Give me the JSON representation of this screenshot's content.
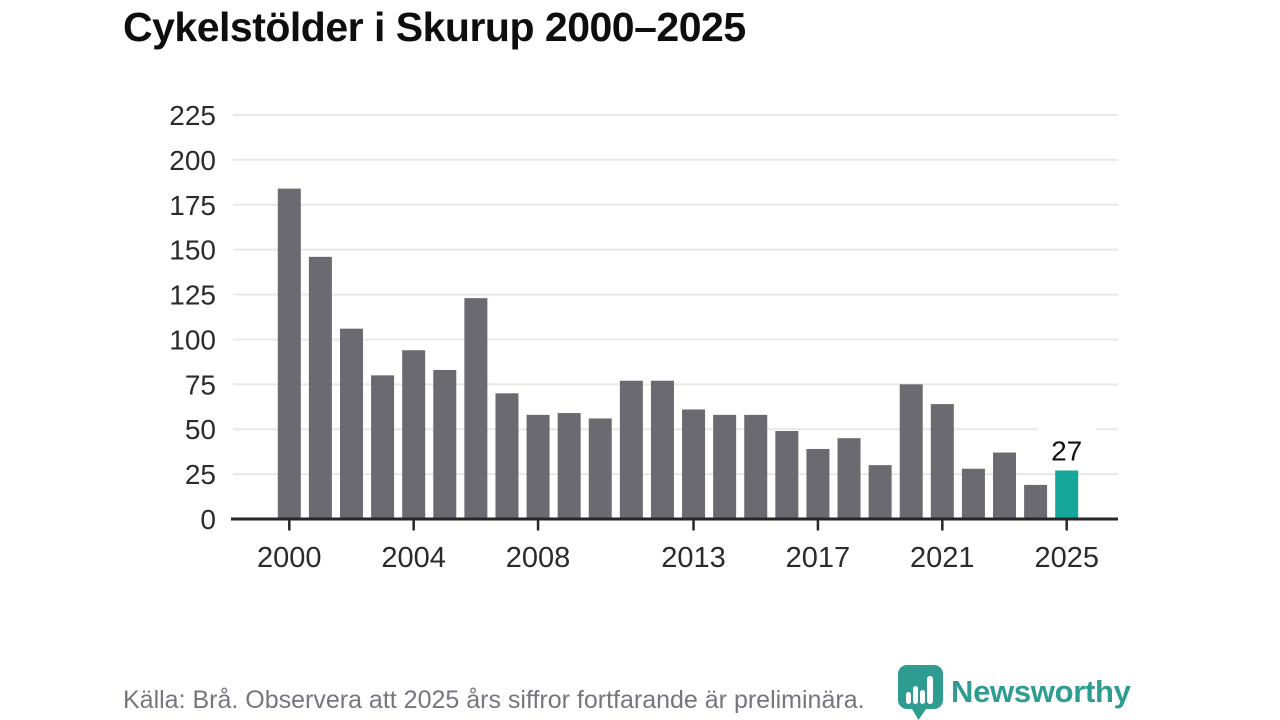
{
  "header": {
    "title": "Cykelstölder i Skurup 2000–2025"
  },
  "footer": {
    "source_text": "Källa: Brå. Observera att 2025 års siffror fortfarande är preliminära."
  },
  "branding": {
    "logo_text": "Newsworthy",
    "logo_color": "#2f9c92",
    "logo_icon": "newsworthy-pin-barchart-icon"
  },
  "chart_data": {
    "type": "bar",
    "title": "Cykelstölder i Skurup 2000–2025",
    "categories": [
      "2000",
      "2001",
      "2002",
      "2003",
      "2004",
      "2005",
      "2006",
      "2007",
      "2008",
      "2009",
      "2010",
      "2011",
      "2012",
      "2013",
      "2014",
      "2015",
      "2016",
      "2017",
      "2018",
      "2019",
      "2020",
      "2021",
      "2022",
      "2023",
      "2024",
      "2025"
    ],
    "values": [
      184,
      146,
      106,
      80,
      94,
      83,
      123,
      70,
      58,
      59,
      56,
      77,
      77,
      61,
      58,
      58,
      49,
      39,
      45,
      30,
      75,
      64,
      28,
      37,
      19,
      27
    ],
    "highlight_index": 25,
    "annotations": [
      {
        "index": 25,
        "label": "27"
      }
    ],
    "x_tick_labels": [
      "2000",
      "2004",
      "2008",
      "2013",
      "2017",
      "2021",
      "2025"
    ],
    "y_ticks": [
      0,
      25,
      50,
      75,
      100,
      125,
      150,
      175,
      200,
      225
    ],
    "ylim": [
      0,
      225
    ],
    "grid": "horizontal",
    "legend": "none",
    "bar_color": "#6b6a70",
    "highlight_color": "#16a79a",
    "grid_color": "#e8e8e8",
    "axis_color": "#262626",
    "tick_label_color": "#2b2b2b",
    "value_label_color": "#111111"
  }
}
